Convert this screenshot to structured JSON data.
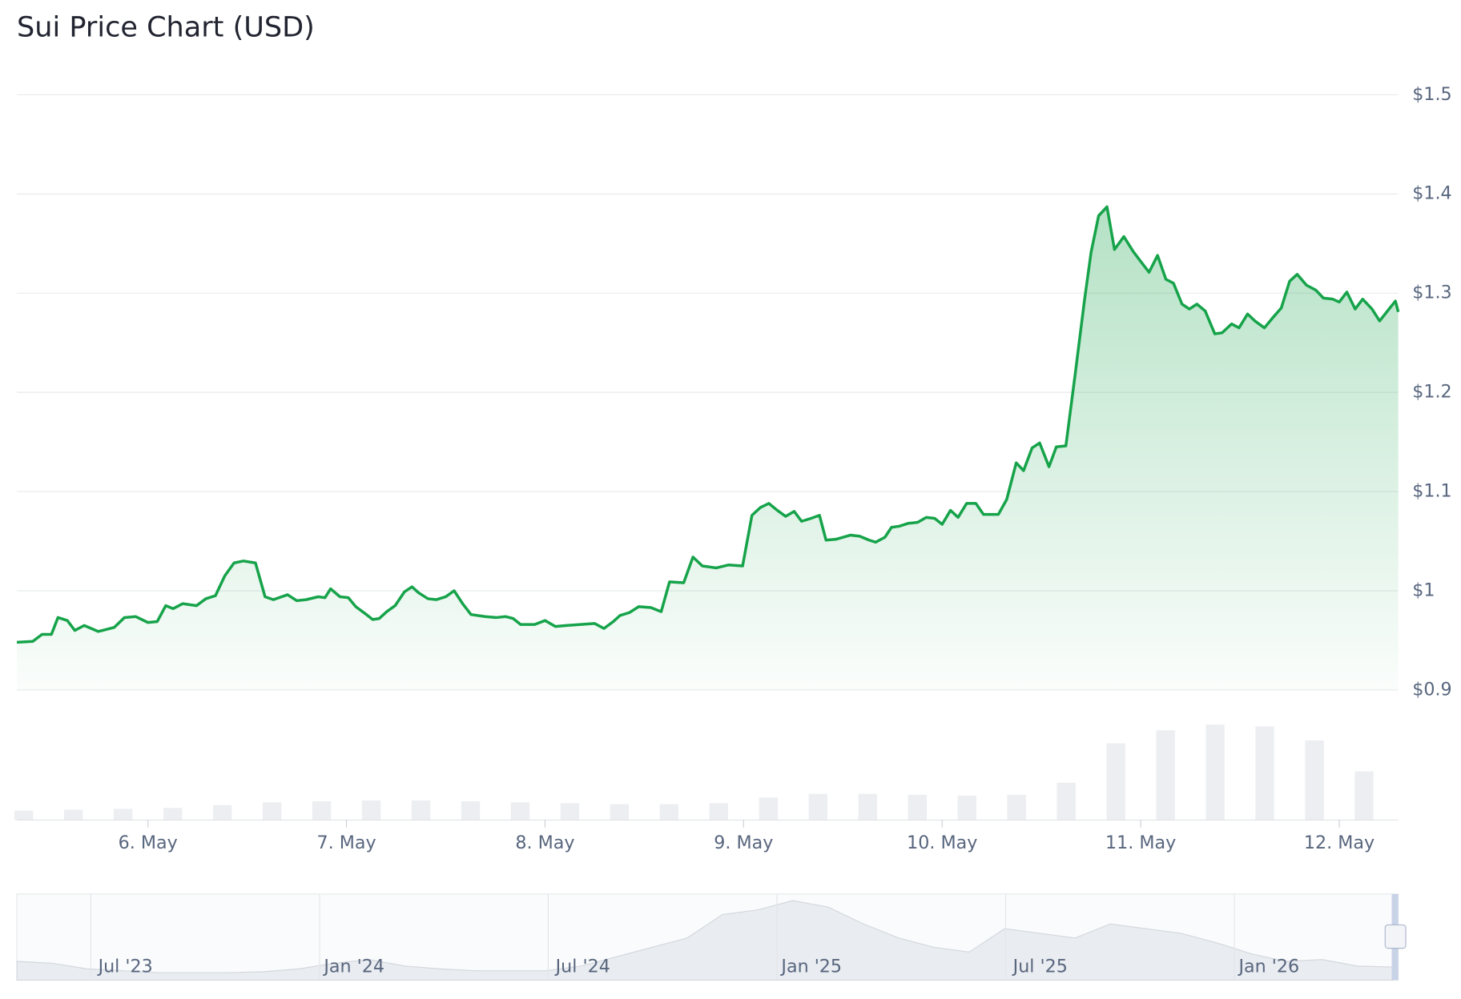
{
  "chart_data": {
    "type": "line",
    "title": "Sui Price Chart (USD)",
    "color": "#16a34a",
    "grid": true,
    "xlim": [
      5.34,
      12.297
    ],
    "xticks": [
      {
        "value": 6,
        "label": "6. May"
      },
      {
        "value": 7,
        "label": "7. May"
      },
      {
        "value": 8,
        "label": "8. May"
      },
      {
        "value": 9,
        "label": "9. May"
      },
      {
        "value": 10,
        "label": "10. May"
      },
      {
        "value": 11,
        "label": "11. May"
      },
      {
        "value": 12,
        "label": "12. May"
      }
    ],
    "ylim": [
      0.9,
      1.5
    ],
    "yticks": [
      {
        "value": 0.9,
        "label": "$0.9"
      },
      {
        "value": 1,
        "label": "$1"
      },
      {
        "value": 1.1,
        "label": "$1.1"
      },
      {
        "value": 1.2,
        "label": "$1.2"
      },
      {
        "value": 1.3,
        "label": "$1.3"
      },
      {
        "value": 1.4,
        "label": "$1.4"
      },
      {
        "value": 1.5,
        "label": "$1.5"
      }
    ],
    "x": [
      5.34,
      5.42,
      5.467,
      5.514,
      5.547,
      5.594,
      5.632,
      5.679,
      5.75,
      5.83,
      5.882,
      5.939,
      6.0,
      6.047,
      6.09,
      6.127,
      6.175,
      6.245,
      6.292,
      6.34,
      6.387,
      6.434,
      6.481,
      6.542,
      6.59,
      6.632,
      6.703,
      6.75,
      6.797,
      6.858,
      6.892,
      6.92,
      6.967,
      7.009,
      7.047,
      7.094,
      7.132,
      7.165,
      7.203,
      7.245,
      7.292,
      7.33,
      7.363,
      7.41,
      7.453,
      7.5,
      7.542,
      7.585,
      7.627,
      7.698,
      7.755,
      7.802,
      7.84,
      7.877,
      7.948,
      8.0,
      8.052,
      8.108,
      8.179,
      8.25,
      8.297,
      8.344,
      8.377,
      8.425,
      8.472,
      8.533,
      8.585,
      8.627,
      8.698,
      8.745,
      8.792,
      8.863,
      8.925,
      8.995,
      9.042,
      9.085,
      9.127,
      9.17,
      9.212,
      9.255,
      9.292,
      9.34,
      9.382,
      9.415,
      9.467,
      9.538,
      9.585,
      9.632,
      9.665,
      9.712,
      9.745,
      9.783,
      9.83,
      9.877,
      9.92,
      9.962,
      10.0,
      10.042,
      10.08,
      10.123,
      10.17,
      10.208,
      10.283,
      10.325,
      10.373,
      10.41,
      10.453,
      10.491,
      10.538,
      10.575,
      10.623,
      10.67,
      10.717,
      10.75,
      10.788,
      10.83,
      10.868,
      10.915,
      10.962,
      11.0,
      11.042,
      11.085,
      11.127,
      11.165,
      11.208,
      11.245,
      11.283,
      11.325,
      11.373,
      11.41,
      11.458,
      11.495,
      11.538,
      11.575,
      11.623,
      11.66,
      11.708,
      11.75,
      11.788,
      11.835,
      11.882,
      11.92,
      11.967,
      12.0,
      12.038,
      12.08,
      12.118,
      12.165,
      12.203,
      12.259,
      12.283,
      12.297
    ],
    "values": [
      0.948,
      0.949,
      0.956,
      0.956,
      0.973,
      0.97,
      0.96,
      0.965,
      0.959,
      0.963,
      0.973,
      0.974,
      0.968,
      0.969,
      0.985,
      0.982,
      0.987,
      0.985,
      0.992,
      0.995,
      1.015,
      1.028,
      1.03,
      1.028,
      0.994,
      0.991,
      0.996,
      0.99,
      0.991,
      0.994,
      0.993,
      1.002,
      0.994,
      0.993,
      0.984,
      0.977,
      0.971,
      0.972,
      0.979,
      0.985,
      0.999,
      1.004,
      0.998,
      0.992,
      0.991,
      0.994,
      1.0,
      0.987,
      0.976,
      0.974,
      0.973,
      0.974,
      0.972,
      0.966,
      0.966,
      0.97,
      0.964,
      0.965,
      0.966,
      0.967,
      0.962,
      0.969,
      0.975,
      0.978,
      0.984,
      0.983,
      0.979,
      1.009,
      1.008,
      1.034,
      1.025,
      1.023,
      1.026,
      1.025,
      1.076,
      1.084,
      1.088,
      1.081,
      1.075,
      1.08,
      1.07,
      1.073,
      1.076,
      1.051,
      1.052,
      1.056,
      1.055,
      1.051,
      1.049,
      1.054,
      1.064,
      1.065,
      1.068,
      1.069,
      1.074,
      1.073,
      1.067,
      1.081,
      1.074,
      1.088,
      1.088,
      1.077,
      1.077,
      1.092,
      1.129,
      1.121,
      1.144,
      1.149,
      1.125,
      1.145,
      1.146,
      1.218,
      1.293,
      1.341,
      1.378,
      1.387,
      1.344,
      1.357,
      1.342,
      1.332,
      1.321,
      1.338,
      1.314,
      1.31,
      1.289,
      1.284,
      1.289,
      1.282,
      1.259,
      1.26,
      1.269,
      1.265,
      1.279,
      1.272,
      1.265,
      1.274,
      1.285,
      1.312,
      1.319,
      1.308,
      1.303,
      1.295,
      1.294,
      1.291,
      1.301,
      1.284,
      1.294,
      1.284,
      1.272,
      1.286,
      1.292,
      1.281
    ],
    "volume": {
      "x": [
        5.375,
        5.625,
        5.875,
        6.125,
        6.375,
        6.625,
        6.875,
        7.125,
        7.375,
        7.625,
        7.875,
        8.125,
        8.375,
        8.625,
        8.875,
        9.125,
        9.375,
        9.625,
        9.875,
        10.125,
        10.375,
        10.625,
        10.875,
        11.125,
        11.375,
        11.625,
        11.875,
        12.125
      ],
      "values": [
        10,
        11,
        12,
        13,
        16,
        19,
        20,
        21,
        21,
        20,
        19,
        18,
        17,
        17,
        18,
        24,
        28,
        28,
        27,
        26,
        27,
        40,
        82,
        96,
        102,
        100,
        85,
        52
      ]
    },
    "navigator": {
      "labels": [
        "Jul '23",
        "Jan '24",
        "Jul '24",
        "Jan '25",
        "Jul '25",
        "Jan '26"
      ],
      "values": [
        20,
        18,
        12,
        10,
        8,
        8,
        8,
        9,
        12,
        18,
        22,
        15,
        12,
        10,
        10,
        10,
        15,
        25,
        35,
        45,
        70,
        75,
        85,
        78,
        60,
        45,
        35,
        30,
        55,
        50,
        45,
        60,
        55,
        50,
        40,
        28,
        20,
        22,
        15,
        14
      ]
    }
  }
}
